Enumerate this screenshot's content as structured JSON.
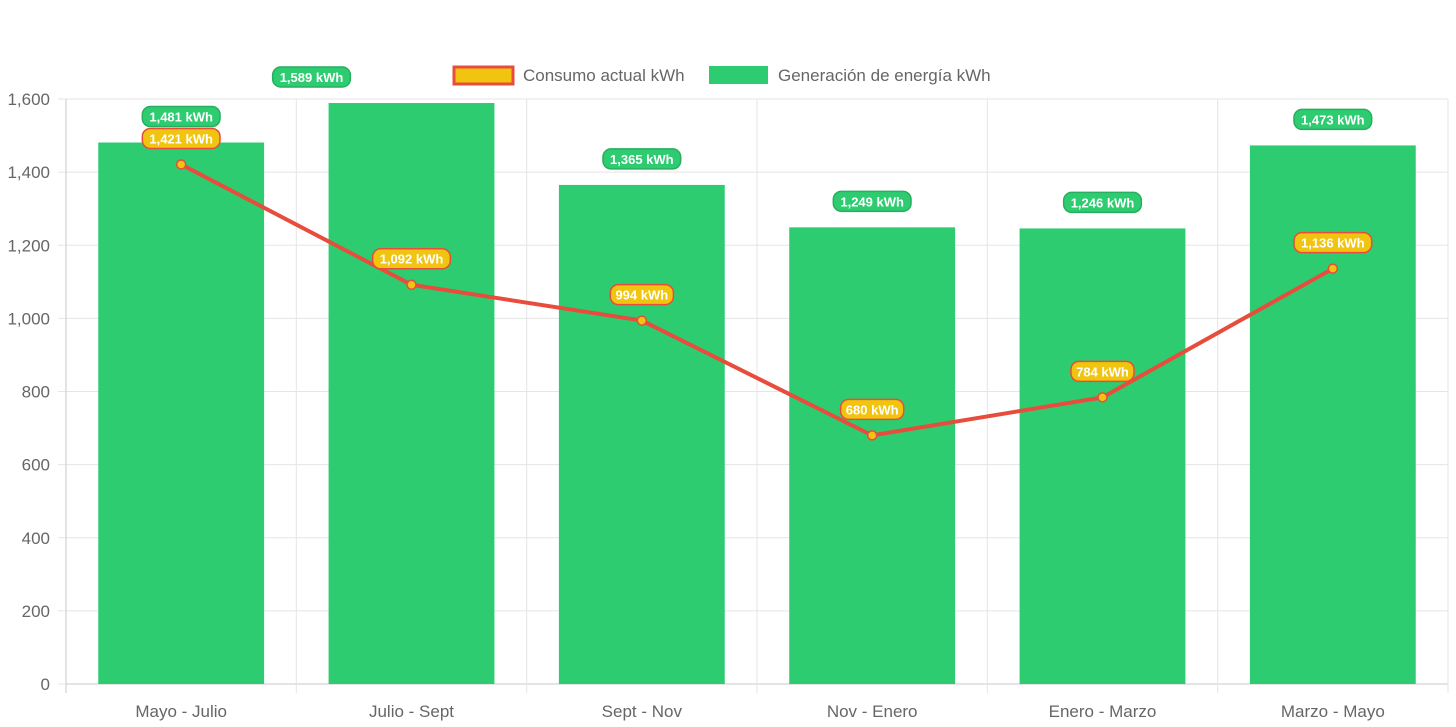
{
  "chart_data": {
    "type": "bar",
    "categories": [
      "Mayo - Julio",
      "Julio - Sept",
      "Sept - Nov",
      "Nov - Enero",
      "Enero - Marzo",
      "Marzo - Mayo"
    ],
    "ylim": [
      0,
      1600
    ],
    "y_ticks": [
      0,
      200,
      400,
      600,
      800,
      1000,
      1200,
      1400,
      1600
    ],
    "y_tick_labels": [
      "0",
      "200",
      "400",
      "600",
      "800",
      "1,000",
      "1,200",
      "1,400",
      "1,600"
    ],
    "grid": true,
    "legend_position": "top",
    "series": [
      {
        "name": "Consumo actual kWh",
        "type": "line",
        "values": [
          1421,
          1092,
          994,
          680,
          784,
          1136
        ],
        "data_labels": [
          "1,421 kWh",
          "1,092 kWh",
          "994 kWh",
          "680 kWh",
          "784 kWh",
          "1,136 kWh"
        ],
        "color": "#e74c3c",
        "fill_color": "#f1c40f"
      },
      {
        "name": "Generación de energía kWh",
        "type": "bar",
        "values": [
          1481,
          1589,
          1365,
          1249,
          1246,
          1473
        ],
        "data_labels": [
          "1,481 kWh",
          "1,589 kWh",
          "1,365 kWh",
          "1,249 kWh",
          "1,246 kWh",
          "1,473 kWh"
        ],
        "color": "#2ecc71",
        "label_border_color": "#27ae60"
      }
    ]
  }
}
